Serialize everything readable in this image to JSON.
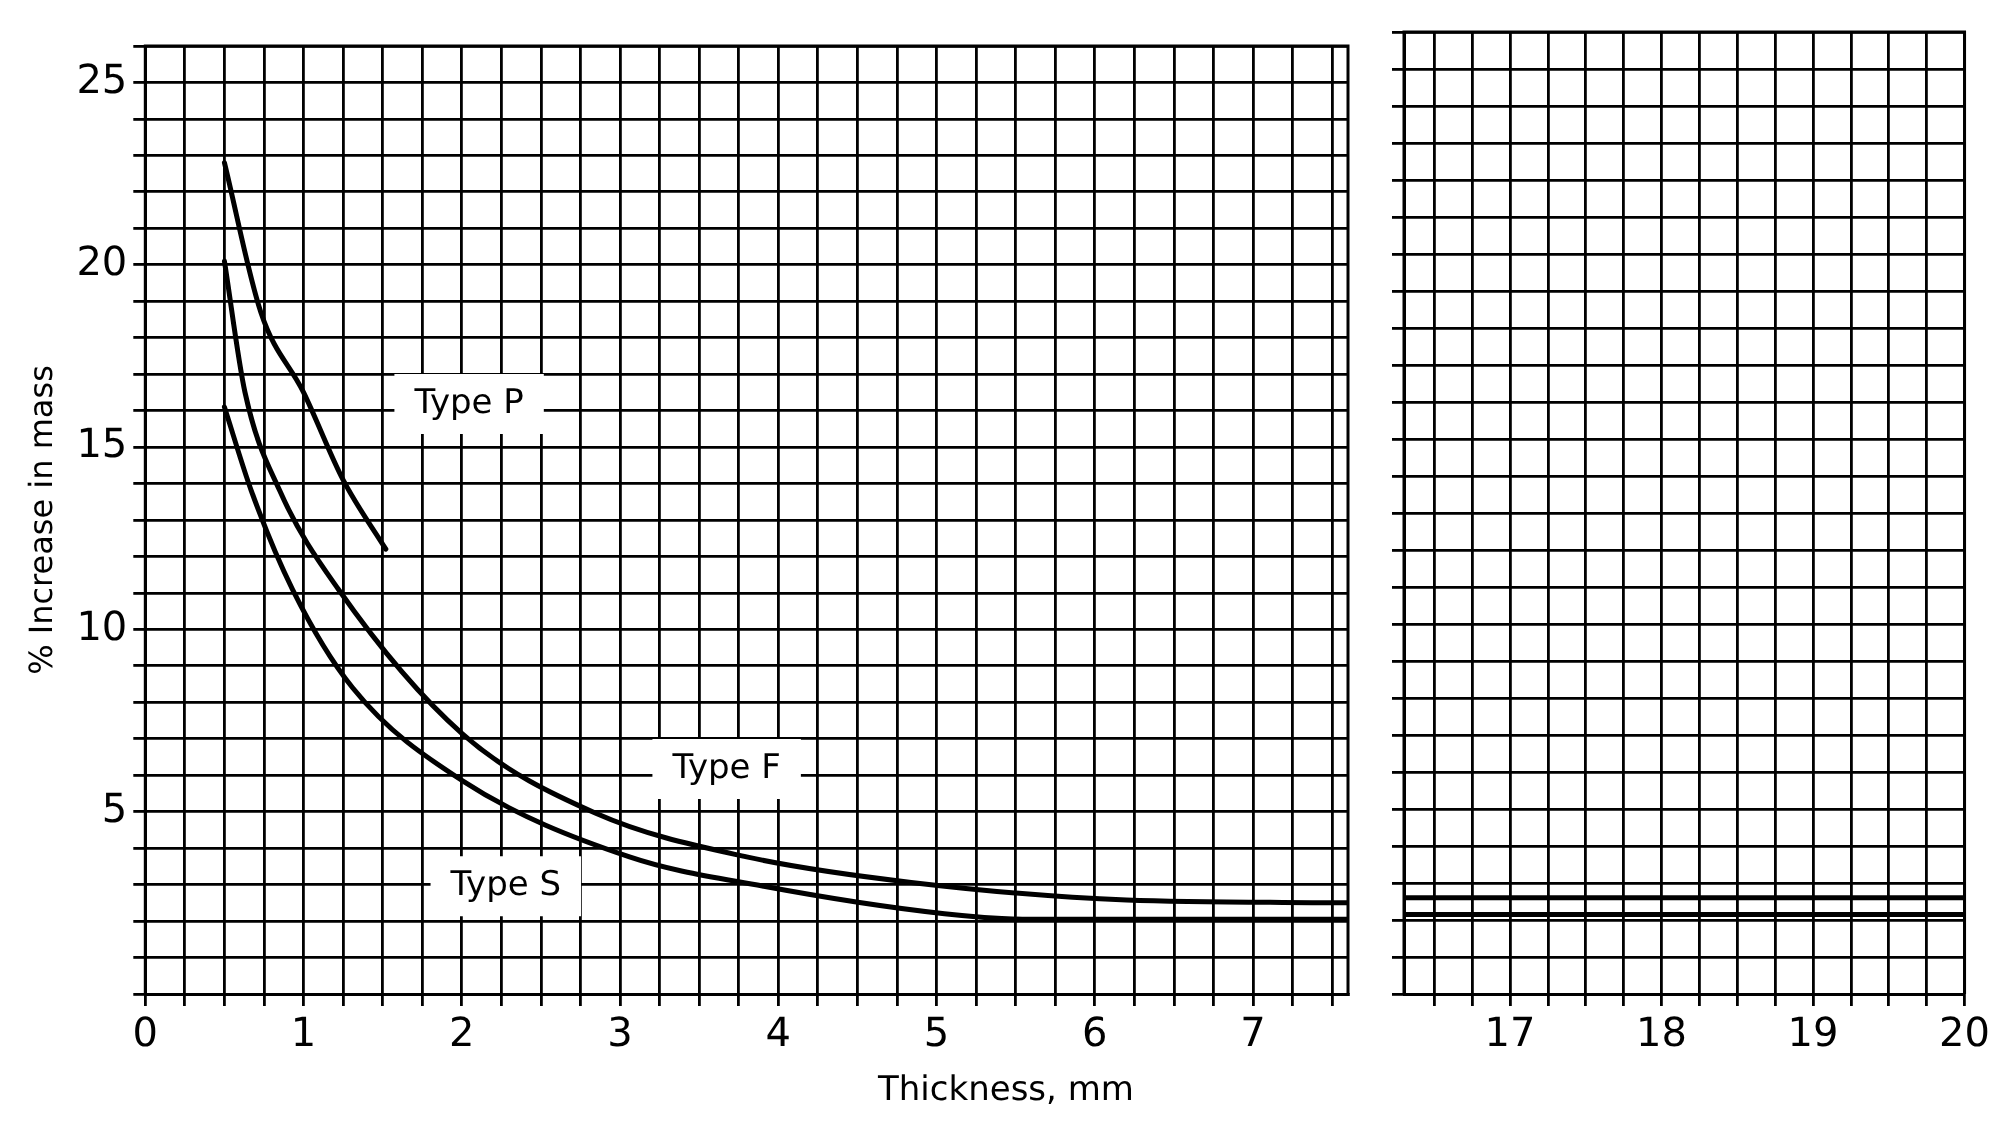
{
  "chart_data": [
    {
      "type": "line",
      "xlabel": "Thickness, mm",
      "ylabel": "% Increase in mass",
      "xlim": [
        0,
        7.6
      ],
      "ylim": [
        0,
        26
      ],
      "grid": true,
      "marker": "none",
      "line_style": "solid",
      "xticks": [
        0,
        {
          "value": 0.25,
          "label": null
        },
        {
          "value": 0.5,
          "label": null
        },
        {
          "value": 0.75,
          "label": null
        },
        1,
        {
          "value": 1.25,
          "label": null
        },
        {
          "value": 1.5,
          "label": null
        },
        {
          "value": 1.75,
          "label": null
        },
        2,
        {
          "value": 2.25,
          "label": null
        },
        {
          "value": 2.5,
          "label": null
        },
        {
          "value": 2.75,
          "label": null
        },
        3,
        {
          "value": 3.25,
          "label": null
        },
        {
          "value": 3.5,
          "label": null
        },
        {
          "value": 3.75,
          "label": null
        },
        4,
        {
          "value": 4.25,
          "label": null
        },
        {
          "value": 4.5,
          "label": null
        },
        {
          "value": 4.75,
          "label": null
        },
        5,
        {
          "value": 5.25,
          "label": null
        },
        {
          "value": 5.5,
          "label": null
        },
        {
          "value": 5.75,
          "label": null
        },
        6,
        {
          "value": 6.25,
          "label": null
        },
        {
          "value": 6.5,
          "label": null
        },
        {
          "value": 6.75,
          "label": null
        },
        7,
        {
          "value": 7.25,
          "label": null
        },
        {
          "value": 7.5,
          "label": null
        }
      ],
      "yticks": [
        {
          "value": 0,
          "label": null
        },
        {
          "value": 1,
          "label": null
        },
        {
          "value": 2,
          "label": null
        },
        {
          "value": 3,
          "label": null
        },
        {
          "value": 4,
          "label": null
        },
        5,
        {
          "value": 6,
          "label": null
        },
        {
          "value": 7,
          "label": null
        },
        {
          "value": 8,
          "label": null
        },
        {
          "value": 9,
          "label": null
        },
        10,
        {
          "value": 11,
          "label": null
        },
        {
          "value": 12,
          "label": null
        },
        {
          "value": 13,
          "label": null
        },
        {
          "value": 14,
          "label": null
        },
        15,
        {
          "value": 16,
          "label": null
        },
        {
          "value": 17,
          "label": null
        },
        {
          "value": 18,
          "label": null
        },
        {
          "value": 19,
          "label": null
        },
        20,
        {
          "value": 21,
          "label": null
        },
        {
          "value": 22,
          "label": null
        },
        {
          "value": 23,
          "label": null
        },
        {
          "value": 24,
          "label": null
        },
        25,
        {
          "value": 26,
          "label": null
        }
      ],
      "series": [
        {
          "name": "Type P",
          "color": "#000000",
          "x": [
            0.5,
            0.73,
            1.0,
            1.25,
            1.52
          ],
          "values": [
            22.8,
            18.7,
            16.5,
            14.1,
            12.2
          ]
        },
        {
          "name": "Type F",
          "color": "#000000",
          "x": [
            0.5,
            0.63,
            0.85,
            1.22,
            2.0,
            2.85,
            3.8,
            4.84,
            6.2,
            7.6
          ],
          "values": [
            20.1,
            16.5,
            13.8,
            11.1,
            7.15,
            4.95,
            3.76,
            3.06,
            2.58,
            2.5
          ]
        },
        {
          "name": "Type S",
          "color": "#000000",
          "x": [
            0.5,
            0.67,
            0.93,
            1.31,
            2.0,
            3.06,
            3.9,
            5.05,
            5.58,
            7.6
          ],
          "values": [
            16.1,
            13.8,
            11.1,
            8.4,
            5.86,
            3.76,
            2.96,
            2.2,
            2.05,
            2.05
          ]
        }
      ]
    },
    {
      "type": "line",
      "xlim": [
        16.3,
        20
      ],
      "ylim": [
        0,
        26
      ],
      "grid": true,
      "marker": "none",
      "line_style": "solid",
      "tick_labels": "x",
      "xticks": [
        {
          "value": 16.5,
          "label": null
        },
        {
          "value": 16.75,
          "label": null
        },
        17,
        {
          "value": 17.25,
          "label": null
        },
        {
          "value": 17.5,
          "label": null
        },
        {
          "value": 17.75,
          "label": null
        },
        18,
        {
          "value": 18.25,
          "label": null
        },
        {
          "value": 18.5,
          "label": null
        },
        {
          "value": 18.75,
          "label": null
        },
        19,
        {
          "value": 19.25,
          "label": null
        },
        {
          "value": 19.5,
          "label": null
        },
        {
          "value": 19.75,
          "label": null
        },
        20
      ],
      "yticks": [
        {
          "value": 0,
          "label": null
        },
        {
          "value": 1,
          "label": null
        },
        {
          "value": 2,
          "label": null
        },
        {
          "value": 3,
          "label": null
        },
        {
          "value": 4,
          "label": null
        },
        5,
        {
          "value": 6,
          "label": null
        },
        {
          "value": 7,
          "label": null
        },
        {
          "value": 8,
          "label": null
        },
        {
          "value": 9,
          "label": null
        },
        10,
        {
          "value": 11,
          "label": null
        },
        {
          "value": 12,
          "label": null
        },
        {
          "value": 13,
          "label": null
        },
        {
          "value": 14,
          "label": null
        },
        15,
        {
          "value": 16,
          "label": null
        },
        {
          "value": 17,
          "label": null
        },
        {
          "value": 18,
          "label": null
        },
        {
          "value": 19,
          "label": null
        },
        20,
        {
          "value": 21,
          "label": null
        },
        {
          "value": 22,
          "label": null
        },
        {
          "value": 23,
          "label": null
        },
        {
          "value": 24,
          "label": null
        },
        25,
        {
          "value": 26,
          "label": null
        }
      ],
      "series": [
        {
          "color": "#000000",
          "x": [
            16.3,
            20
          ],
          "values": [
            2.6,
            2.6
          ]
        },
        {
          "color": "#000000",
          "x": [
            16.3,
            20
          ],
          "values": [
            2.15,
            2.15
          ]
        }
      ]
    }
  ]
}
